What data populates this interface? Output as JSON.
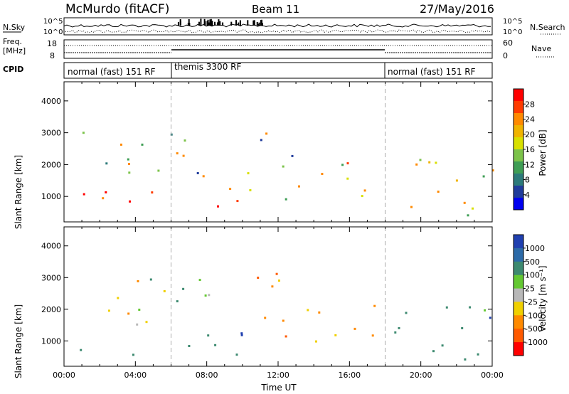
{
  "header": {
    "station": "McMurdo (fitACF)",
    "beam": "Beam 11",
    "date": "27/May/2016"
  },
  "strip_labels": {
    "nsky": "N.Sky",
    "freq_top": "Freq.",
    "freq_unit": "[MHz]",
    "cpid": "CPID",
    "nsearch": "N.Search",
    "nave": "Nave",
    "nsky_ticks": [
      "10^5",
      "10^0"
    ],
    "nsearch_ticks": [
      "10^5",
      "10^0"
    ],
    "freq_ticks": [
      "18",
      "8"
    ],
    "nave_ticks": [
      "60",
      "0"
    ]
  },
  "cpid_segments": [
    {
      "label": "normal (fast) 151 RF",
      "start_h": 0,
      "end_h": 6
    },
    {
      "label": "themis 3300 RF",
      "start_h": 6,
      "end_h": 18
    },
    {
      "label": "normal (fast) 151 RF",
      "start_h": 18,
      "end_h": 24
    }
  ],
  "chart_data": [
    {
      "type": "heatmap",
      "name": "power",
      "ylabel": "Slant Range [km]",
      "xlabel": "",
      "xlim": [
        0,
        24
      ],
      "ylim": [
        200,
        4600
      ],
      "yticks": [
        1000,
        2000,
        3000,
        4000
      ],
      "colorbar_label": "Power [dB]",
      "colorbar_ticks": [
        "28",
        "24",
        "20",
        "16",
        "12",
        "8",
        "4"
      ],
      "colorbar_colors": [
        "#ff0000",
        "#ff3b00",
        "#ff8a00",
        "#f0b400",
        "#d8e000",
        "#7cc34a",
        "#3f9e55",
        "#2c7a7a",
        "#203c9c",
        "#0000f0"
      ],
      "scatter_regions": [
        {
          "x0": 1.0,
          "x1": 10.0,
          "y0": 500,
          "y1": 1300,
          "level": "high"
        },
        {
          "x0": 0.8,
          "x1": 8.2,
          "y0": 1400,
          "y1": 3100,
          "level": "mixed"
        },
        {
          "x0": 10.2,
          "x1": 12.8,
          "y0": 900,
          "y1": 3300,
          "level": "mixed"
        },
        {
          "x0": 13.0,
          "x1": 17.5,
          "y0": 900,
          "y1": 2300,
          "level": "mid"
        },
        {
          "x0": 18.5,
          "x1": 24.0,
          "y0": 400,
          "y1": 2300,
          "level": "mid"
        }
      ]
    },
    {
      "type": "heatmap",
      "name": "velocity",
      "ylabel": "Slant Range [km]",
      "xlabel": "Time UT",
      "xlim": [
        0,
        24
      ],
      "ylim": [
        200,
        4600
      ],
      "yticks": [
        1000,
        2000,
        3000,
        4000
      ],
      "xticks": [
        "00:00",
        "04:00",
        "08:00",
        "12:00",
        "16:00",
        "20:00",
        "00:00"
      ],
      "colorbar_label": "Velocity [m s⁻¹]",
      "colorbar_ticks": [
        "1000",
        "500",
        "100",
        "25",
        "-25",
        "-100",
        "-500",
        "-1000"
      ],
      "colorbar_colors": [
        "#2040b0",
        "#2c6aa8",
        "#3d8a70",
        "#64c832",
        "#b8b8b8",
        "#f0d000",
        "#ff8a00",
        "#ff5a00",
        "#ff0000"
      ],
      "scatter_regions": [
        {
          "x0": 0.8,
          "x1": 10.0,
          "y0": 500,
          "y1": 1300,
          "level": "pos"
        },
        {
          "x0": 1.0,
          "x1": 8.2,
          "y0": 1400,
          "y1": 3100,
          "level": "mixed"
        },
        {
          "x0": 10.2,
          "x1": 12.8,
          "y0": 900,
          "y1": 3300,
          "level": "neg"
        },
        {
          "x0": 13.0,
          "x1": 17.5,
          "y0": 900,
          "y1": 2300,
          "level": "neg"
        },
        {
          "x0": 18.5,
          "x1": 24.0,
          "y0": 400,
          "y1": 2300,
          "level": "pos"
        }
      ]
    }
  ]
}
